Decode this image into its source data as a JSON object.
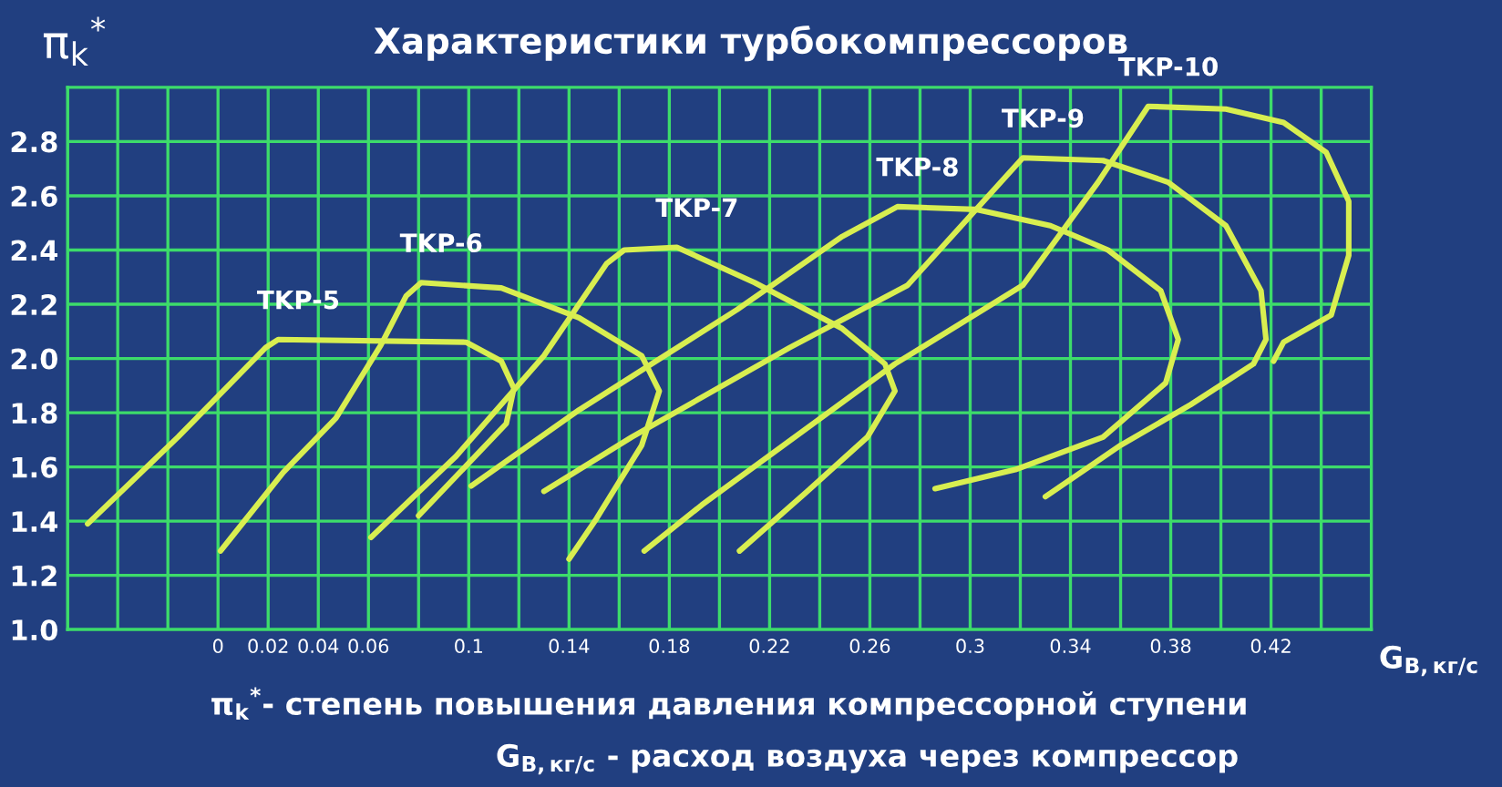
{
  "chart_data": {
    "type": "line",
    "title": "Характеристики турбокомпрессоров",
    "ylabel": "π$_{k}$$^{*}$",
    "xlabel": "G$_{В,кг/с}$",
    "annotations": [
      "π$_{k}$$^{*}$- степень повышения давления компрессорной ступени",
      "G$_{В,кг/с}$ - расход воздуха через компрессор"
    ],
    "xlim": [
      -0.06,
      0.46
    ],
    "ylim": [
      1.0,
      3.0
    ],
    "xticks": [
      {
        "value": -0.06,
        "label": null
      },
      {
        "value": -0.04,
        "label": null
      },
      {
        "value": -0.02,
        "label": null
      },
      0,
      0.02,
      0.04,
      0.06,
      {
        "value": 0.08,
        "label": null
      },
      0.1,
      {
        "value": 0.12,
        "label": null
      },
      0.14,
      {
        "value": 0.16,
        "label": null
      },
      0.18,
      {
        "value": 0.2,
        "label": null
      },
      0.22,
      {
        "value": 0.24,
        "label": null
      },
      0.26,
      {
        "value": 0.28,
        "label": null
      },
      0.3,
      {
        "value": 0.32,
        "label": null
      },
      0.34,
      {
        "value": 0.36,
        "label": null
      },
      0.38,
      {
        "value": 0.4,
        "label": null
      },
      0.42,
      {
        "value": 0.44,
        "label": null
      }
    ],
    "yticks": [
      {
        "value": 1,
        "label": "1.0"
      },
      1.2,
      1.4,
      1.6,
      1.8,
      {
        "value": 2,
        "label": "2.0"
      },
      2.2,
      2.4,
      2.6,
      2.8
    ],
    "grid": true,
    "legend": false,
    "marker": "none",
    "line_style": "solid",
    "series": [
      {
        "name": "TKP-5",
        "color": "#d8ee50",
        "x": [
          -0.052,
          -0.016,
          0.019,
          0.024,
          0.099,
          0.113,
          0.118,
          0.115,
          0.08
        ],
        "values": [
          1.39,
          1.71,
          2.04,
          2.07,
          2.06,
          1.99,
          1.89,
          1.76,
          1.42
        ]
      },
      {
        "name": "TKP-6",
        "color": "#d8ee50",
        "x": [
          0.001,
          0.026,
          0.047,
          0.065,
          0.075,
          0.081,
          0.113,
          0.144,
          0.169,
          0.176,
          0.169,
          0.151,
          0.14
        ],
        "values": [
          1.29,
          1.58,
          1.78,
          2.05,
          2.23,
          2.28,
          2.26,
          2.15,
          2.01,
          1.88,
          1.68,
          1.41,
          1.26
        ]
      },
      {
        "name": "TKP-7",
        "color": "#d8ee50",
        "x": [
          0.061,
          0.095,
          0.13,
          0.155,
          0.162,
          0.183,
          0.214,
          0.249,
          0.266,
          0.27,
          0.259,
          0.235,
          0.208
        ],
        "values": [
          1.34,
          1.64,
          2.01,
          2.35,
          2.4,
          2.41,
          2.28,
          2.11,
          1.98,
          1.88,
          1.71,
          1.51,
          1.29
        ]
      },
      {
        "name": "TKP-8",
        "color": "#d8ee50",
        "x": [
          0.101,
          0.144,
          0.207,
          0.249,
          0.271,
          0.302,
          0.332,
          0.355,
          0.376,
          0.383,
          0.378,
          0.353,
          0.318,
          0.286
        ],
        "values": [
          1.53,
          1.81,
          2.18,
          2.45,
          2.56,
          2.55,
          2.49,
          2.4,
          2.25,
          2.07,
          1.91,
          1.71,
          1.59,
          1.52
        ]
      },
      {
        "name": "TKP-9",
        "color": "#d8ee50",
        "x": [
          0.13,
          0.165,
          0.228,
          0.275,
          0.321,
          0.353,
          0.379,
          0.402,
          0.416,
          0.418,
          0.413,
          0.388,
          0.36,
          0.33
        ],
        "values": [
          1.51,
          1.71,
          2.04,
          2.27,
          2.74,
          2.73,
          2.65,
          2.49,
          2.25,
          2.07,
          1.98,
          1.83,
          1.68,
          1.49
        ]
      },
      {
        "name": "TKP-10",
        "color": "#d8ee50",
        "x": [
          0.17,
          0.193,
          0.27,
          0.321,
          0.351,
          0.371,
          0.402,
          0.425,
          0.442,
          0.451,
          0.451,
          0.444,
          0.425,
          0.421
        ],
        "values": [
          1.29,
          1.46,
          1.98,
          2.27,
          2.65,
          2.93,
          2.92,
          2.87,
          2.76,
          2.58,
          2.38,
          2.16,
          2.06,
          1.99
        ]
      }
    ]
  }
}
